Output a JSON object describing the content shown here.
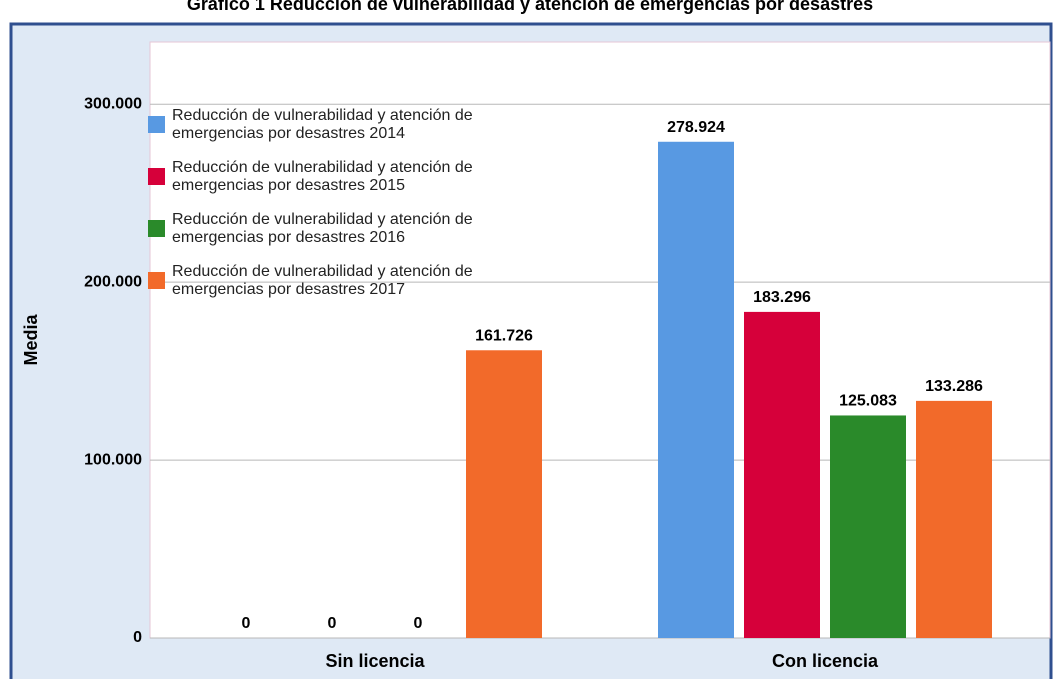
{
  "chart_data": {
    "type": "bar",
    "title": "Gráfico 1 Reducción de vulnerabilidad y atención de emergencias por desastres",
    "y_label": "Media",
    "categories": [
      "Sin licencia",
      "Con licencia"
    ],
    "series": [
      {
        "name": "Reducción de vulnerabilidad y atención de emergencias por desastres 2014",
        "color": "#5899e2",
        "values": [
          0,
          278924
        ],
        "value_labels": [
          "0",
          "278.924"
        ]
      },
      {
        "name": "Reducción de vulnerabilidad y atención de emergencias por desastres 2015",
        "color": "#d6003a",
        "values": [
          0,
          183296
        ],
        "value_labels": [
          "0",
          "183.296"
        ]
      },
      {
        "name": "Reducción de vulnerabilidad y atención de emergencias por desastres 2016",
        "color": "#2a8a2a",
        "values": [
          0,
          125083
        ],
        "value_labels": [
          "0",
          "125.083"
        ]
      },
      {
        "name": "Reducción de vulnerabilidad y atención de emergencias por desastres 2017",
        "color": "#f26a2a",
        "values": [
          161726,
          133286
        ],
        "value_labels": [
          "161.726",
          "133.286"
        ]
      }
    ],
    "ylim": [
      0,
      335000
    ],
    "yticks": [
      0,
      {
        "value": 100000,
        "label": "100.000"
      },
      {
        "value": 200000,
        "label": "200.000"
      },
      {
        "value": 300000,
        "label": "300.000"
      }
    ],
    "grid": true,
    "legend": "upper left"
  }
}
